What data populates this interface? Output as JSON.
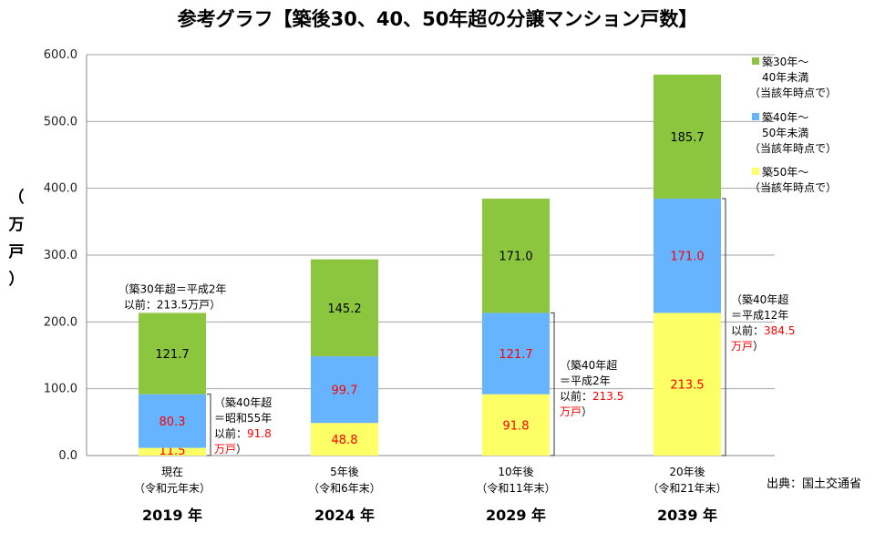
{
  "chart_data": {
    "type": "bar",
    "stacked": true,
    "title": "参考グラフ【築後30、40、50年超の分譲マンション戸数】",
    "ylabel_chars": [
      "（",
      "万",
      "戸",
      "）"
    ],
    "ylim": [
      0,
      600
    ],
    "yticks": [
      "0.0",
      "100.0",
      "200.0",
      "300.0",
      "400.0",
      "500.0",
      "600.0"
    ],
    "grid": true,
    "categories": [
      {
        "line1": "現在",
        "line2": "（令和元年末）",
        "year": "2019 年"
      },
      {
        "line1": "5年後",
        "line2": "（令和6年末）",
        "year": "2024 年"
      },
      {
        "line1": "10年後",
        "line2": "（令和11年末）",
        "year": "2029 年"
      },
      {
        "line1": "20年後",
        "line2": "（令和21年末）",
        "year": "2039 年"
      }
    ],
    "series": [
      {
        "name": "築50年〜（当該年時点で）",
        "legend_lines": [
          "築50年〜",
          "（当該年時点で）"
        ],
        "color": "#ffff66",
        "label_color": "#ff0000",
        "values": [
          11.5,
          48.8,
          91.8,
          213.5
        ],
        "labels": [
          "11.5",
          "48.8",
          "91.8",
          "213.5"
        ]
      },
      {
        "name": "築40年〜50年未満（当該年時点で）",
        "legend_lines": [
          "築40年〜",
          "50年未満",
          "（当該年時点で）"
        ],
        "color": "#66b3ff",
        "label_color": "#ff0000",
        "values": [
          80.3,
          99.7,
          121.7,
          171.0
        ],
        "labels": [
          "80.3",
          "99.7",
          "121.7",
          "171.0"
        ]
      },
      {
        "name": "築30年〜40年未満（当該年時点で）",
        "legend_lines": [
          "築30年〜",
          "40年未満",
          "（当該年時点で）"
        ],
        "color": "#8cc63f",
        "label_color": "#000000",
        "values": [
          121.7,
          145.2,
          171.0,
          185.7
        ],
        "labels": [
          "121.7",
          "145.2",
          "171.0",
          "185.7"
        ]
      }
    ],
    "legend_position": "right",
    "annotations": [
      {
        "anchor": "bar-0-top",
        "lines": [
          {
            "text": "（築30年超＝平成2年"
          },
          {
            "text": "以前：213.5万戸）"
          }
        ]
      },
      {
        "anchor": "bar-0-old40",
        "lines": [
          {
            "text": "（築40年超"
          },
          {
            "text": "＝昭和55年"
          },
          {
            "text": "以前：",
            "red": "91.8"
          },
          {
            "text": "",
            "red": "万戸",
            "tail": "）"
          }
        ]
      },
      {
        "anchor": "bar-2-old40",
        "lines": [
          {
            "text": "（築40年超"
          },
          {
            "text": "＝平成2年"
          },
          {
            "text": "以前：",
            "red": "213.5"
          },
          {
            "text": "",
            "red": "万戸",
            "tail": "）"
          }
        ]
      },
      {
        "anchor": "bar-3-old40",
        "lines": [
          {
            "text": "（築40年超"
          },
          {
            "text": "＝平成12年"
          },
          {
            "text": "以前：",
            "red": "384.5"
          },
          {
            "text": "",
            "red": "万戸",
            "tail": "）"
          }
        ]
      }
    ],
    "source": "出典：国土交通省",
    "colors": {
      "grid": "#a6a6a6",
      "axis": "#888888",
      "red": "#ff0000",
      "bracket": "#333333"
    }
  }
}
